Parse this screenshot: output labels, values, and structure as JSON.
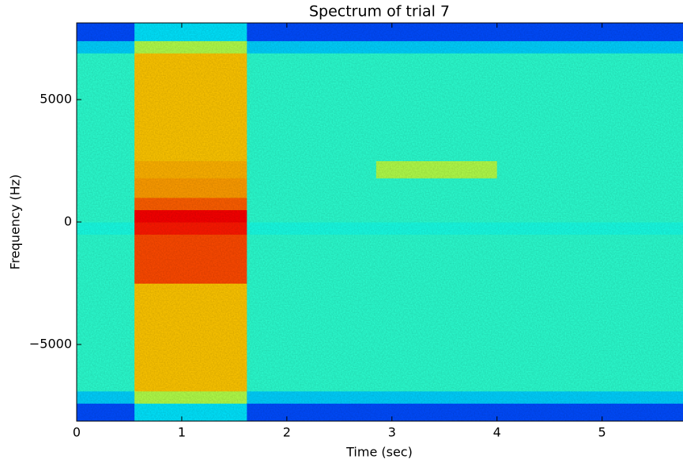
{
  "chart_data": {
    "type": "spectrogram",
    "title": "Spectrum of trial 7",
    "xlabel": "Time (sec)",
    "ylabel": "Frequency (Hz)",
    "colormap": "jet",
    "x_edges": [
      0,
      0.55,
      1.62,
      2.85,
      4.0,
      5.77
    ],
    "y_edges": [
      -8130,
      -7400,
      -6900,
      -2500,
      -500,
      0,
      500,
      1000,
      1800,
      2500,
      6900,
      7400,
      8130
    ],
    "values": [
      [
        0.2,
        0.33,
        0.42,
        0.42,
        0.4,
        0.42,
        0.42,
        0.42,
        0.42,
        0.42,
        0.33,
        0.2
      ],
      [
        0.35,
        0.55,
        0.68,
        0.8,
        0.85,
        0.88,
        0.78,
        0.72,
        0.7,
        0.68,
        0.55,
        0.35
      ],
      [
        0.2,
        0.33,
        0.42,
        0.42,
        0.4,
        0.42,
        0.42,
        0.42,
        0.42,
        0.42,
        0.33,
        0.2
      ],
      [
        0.2,
        0.33,
        0.42,
        0.42,
        0.4,
        0.42,
        0.42,
        0.42,
        0.55,
        0.42,
        0.33,
        0.2
      ],
      [
        0.2,
        0.33,
        0.42,
        0.42,
        0.4,
        0.42,
        0.42,
        0.42,
        0.42,
        0.42,
        0.33,
        0.2
      ]
    ],
    "xlim": [
      0,
      5.77
    ],
    "ylim": [
      -8130,
      8130
    ],
    "xticks": [
      0,
      1,
      2,
      3,
      4,
      5
    ],
    "yticks": [
      {
        "value": -5000,
        "label": "−5000"
      },
      0,
      5000
    ]
  }
}
